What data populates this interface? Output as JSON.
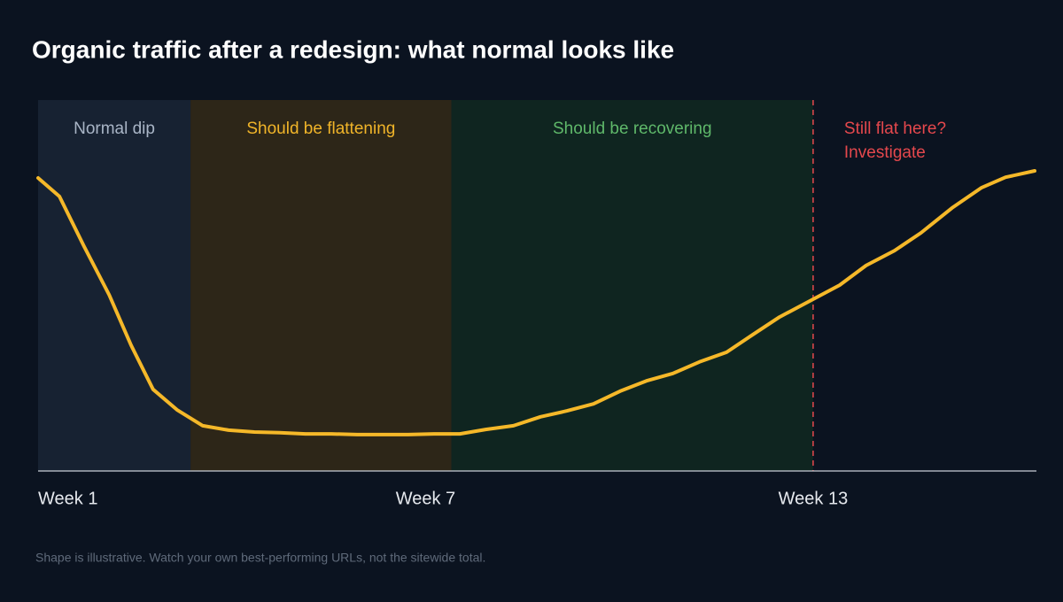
{
  "chart_data": {
    "type": "line",
    "title": "Organic traffic after a redesign: what normal looks like",
    "footnote": "Shape is illustrative. Watch your own best-performing URLs, not the sitewide total.",
    "x": [
      1.0,
      1.33,
      1.71,
      2.1,
      2.44,
      2.78,
      3.15,
      3.55,
      3.95,
      4.35,
      4.74,
      5.14,
      5.54,
      5.94,
      6.33,
      6.73,
      7.13,
      7.53,
      7.93,
      8.36,
      8.78,
      9.19,
      9.6,
      10.01,
      10.42,
      10.83,
      11.24,
      11.66,
      12.07,
      12.48,
      13.0,
      13.41,
      13.82,
      14.26,
      14.67,
      15.15,
      15.61,
      15.98,
      16.43
    ],
    "values": [
      79.0,
      74.0,
      60.6,
      47.5,
      33.9,
      22.0,
      16.5,
      12.2,
      11.0,
      10.5,
      10.3,
      10.0,
      10.0,
      9.8,
      9.8,
      9.8,
      10.0,
      10.0,
      11.2,
      12.2,
      14.6,
      16.2,
      18.1,
      21.5,
      24.3,
      26.3,
      29.4,
      32.0,
      36.8,
      41.5,
      46.3,
      50.1,
      55.4,
      59.4,
      64.2,
      70.9,
      76.4,
      79.2,
      80.9
    ],
    "color": "#f5b829",
    "xlim": [
      1,
      16.43
    ],
    "ylim": [
      0,
      100
    ],
    "xticks": [
      {
        "value": 1,
        "label": "Week 1"
      },
      {
        "value": 7,
        "label": "Week 7"
      },
      {
        "value": 13,
        "label": "Week 13"
      }
    ],
    "regions": [
      {
        "label": "Normal dip",
        "start": 1,
        "end": 3.36,
        "fill": "#172232",
        "text_color": "#a9b5c6"
      },
      {
        "label": "Should be flattening",
        "start": 3.36,
        "end": 7.4,
        "fill": "#2d2618",
        "text_color": "#f0b429"
      },
      {
        "label": "Should be recovering",
        "start": 7.4,
        "end": 13,
        "fill": "#0f2520",
        "text_color": "#5fb86a"
      }
    ],
    "threshold": {
      "x": 13,
      "color": "#e5484d",
      "labels": [
        "Still flat here?",
        "Investigate"
      ]
    }
  }
}
